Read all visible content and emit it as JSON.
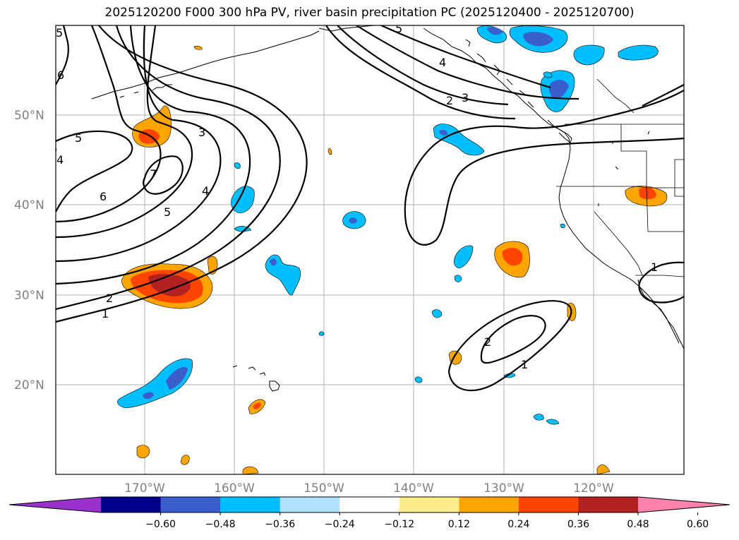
{
  "title": "2025120200 F000 300 hPa PV, river basin precipitation PC (2025120400 - 2025120700)",
  "lat_labels": [
    "50°N",
    "40°N",
    "30°N",
    "20°N"
  ],
  "lon_labels": [
    "170°W",
    "160°W",
    "150°W",
    "140°W",
    "130°W",
    "120°W"
  ],
  "contour_labels": [
    "5",
    "6",
    "4",
    "7",
    "5",
    "3",
    "4",
    "5",
    "6",
    "2",
    "1",
    "5",
    "4",
    "3",
    "2",
    "2",
    "1",
    "1"
  ],
  "colorbar": {
    "ticks": [
      "−0.60",
      "−0.48",
      "−0.36",
      "−0.24",
      "−0.12",
      "0.12",
      "0.24",
      "0.36",
      "0.48",
      "0.60"
    ],
    "colors": [
      "#9932CC",
      "#00008B",
      "#3A5FCD",
      "#00BFFF",
      "#B0E2FF",
      "#FFFFFF",
      "#FFEC8B",
      "#FFA500",
      "#FF4500",
      "#B22222",
      "#FF82AB"
    ]
  },
  "colors": {
    "orange": "#FFA500",
    "red_orange": "#FF4500",
    "firebrick": "#B22222",
    "deep_sky_blue": "#00BFFF",
    "royal_blue": "#3A5FCD",
    "contour": "#000000",
    "grid": "#b0b0b0"
  }
}
